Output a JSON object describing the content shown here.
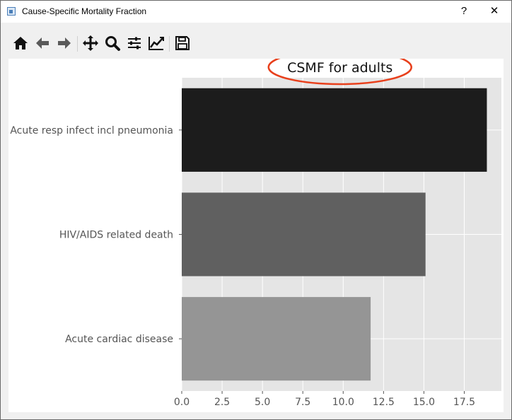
{
  "window": {
    "title": "Cause-Specific Mortality Fraction",
    "help_label": "?",
    "close_label": "✕"
  },
  "toolbar": {
    "buttons": [
      {
        "name": "home-icon",
        "label": "Home"
      },
      {
        "name": "back-icon",
        "label": "Back"
      },
      {
        "name": "forward-icon",
        "label": "Forward"
      },
      {
        "name": "pan-icon",
        "label": "Pan"
      },
      {
        "name": "zoom-icon",
        "label": "Zoom"
      },
      {
        "name": "configure-subplots-icon",
        "label": "Subplots"
      },
      {
        "name": "edit-axes-icon",
        "label": "Customize"
      },
      {
        "name": "save-icon",
        "label": "Save"
      }
    ]
  },
  "colors": {
    "plot_bg": "#e5e5e5",
    "grid": "#ffffff",
    "annotation_ellipse": "#e8401c",
    "bar_colors": [
      "#1c1c1c",
      "#606060",
      "#959595"
    ]
  },
  "chart_data": {
    "type": "bar",
    "orientation": "horizontal",
    "title": "CSMF for adults",
    "title_annotation": "red ellipse around title",
    "categories": [
      "Acute resp infect incl pneumonia",
      "HIV/AIDS related death",
      "Acute cardiac disease"
    ],
    "values": [
      18.9,
      15.1,
      11.7
    ],
    "xlim": [
      0,
      19.8
    ],
    "xticks": [
      0.0,
      2.5,
      5.0,
      7.5,
      10.0,
      12.5,
      15.0,
      17.5
    ],
    "xtick_labels": [
      "0.0",
      "2.5",
      "5.0",
      "7.5",
      "10.0",
      "12.5",
      "15.0",
      "17.5"
    ],
    "xlabel": "",
    "ylabel": "",
    "grid": true,
    "style": "ggplot"
  }
}
